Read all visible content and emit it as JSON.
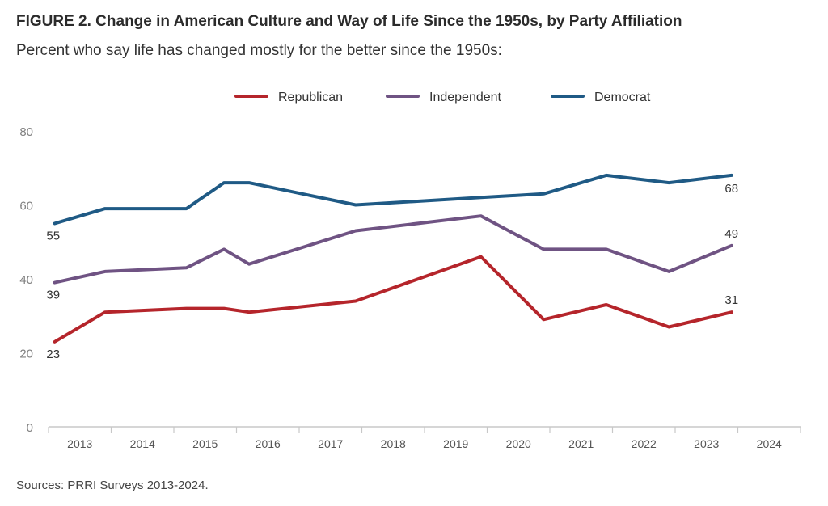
{
  "header": {
    "title": "FIGURE 2.  Change in American Culture and Way of Life Since the 1950s, by Party Affiliation",
    "subtitle": "Percent who say life has changed mostly for the better since the 1950s:"
  },
  "footer": {
    "source": "Sources: PRRI Surveys 2013-2024."
  },
  "colors": {
    "Republican": "#b5252b",
    "Independent": "#6f5383",
    "Democrat": "#1f5a85",
    "axis": "#c8c8c8"
  },
  "chart_data": {
    "type": "line",
    "title": "FIGURE 2.  Change in American Culture and Way of Life Since the 1950s, by Party Affiliation",
    "subtitle": "Percent who say life has changed mostly for the better since the 1950s:",
    "xlabel": "",
    "ylabel": "",
    "ylim": [
      0,
      80
    ],
    "yticks": [
      0,
      20,
      40,
      60,
      80
    ],
    "xlim": [
      2013,
      2025
    ],
    "xticks": [
      "2013",
      "2014",
      "2015",
      "2016",
      "2017",
      "2018",
      "2019",
      "2020",
      "2021",
      "2022",
      "2023",
      "2024"
    ],
    "grid": false,
    "legend_position": "top-center",
    "series": [
      {
        "name": "Republican",
        "x": [
          2013.1,
          2013.9,
          2015.2,
          2015.8,
          2016.2,
          2017.9,
          2019.9,
          2020.9,
          2021.9,
          2022.9,
          2023.9
        ],
        "values": [
          23,
          31,
          32,
          32,
          31,
          34,
          46,
          29,
          33,
          27,
          31
        ]
      },
      {
        "name": "Independent",
        "x": [
          2013.1,
          2013.9,
          2015.2,
          2015.8,
          2016.2,
          2017.9,
          2019.9,
          2020.9,
          2021.9,
          2022.9,
          2023.9
        ],
        "values": [
          39,
          42,
          43,
          48,
          44,
          53,
          57,
          48,
          48,
          42,
          49
        ]
      },
      {
        "name": "Democrat",
        "x": [
          2013.1,
          2013.9,
          2015.2,
          2015.8,
          2016.2,
          2017.9,
          2019.9,
          2020.9,
          2021.9,
          2022.9,
          2023.9
        ],
        "values": [
          55,
          59,
          59,
          66,
          66,
          60,
          62,
          63,
          68,
          66,
          68
        ]
      }
    ],
    "annotations": [
      {
        "series": "Republican",
        "text": "23"
      },
      {
        "series": "Republican",
        "text": "31"
      },
      {
        "series": "Independent",
        "text": "39"
      },
      {
        "series": "Independent",
        "text": "49"
      },
      {
        "series": "Democrat",
        "text": "55"
      },
      {
        "series": "Democrat",
        "text": "68"
      }
    ]
  }
}
